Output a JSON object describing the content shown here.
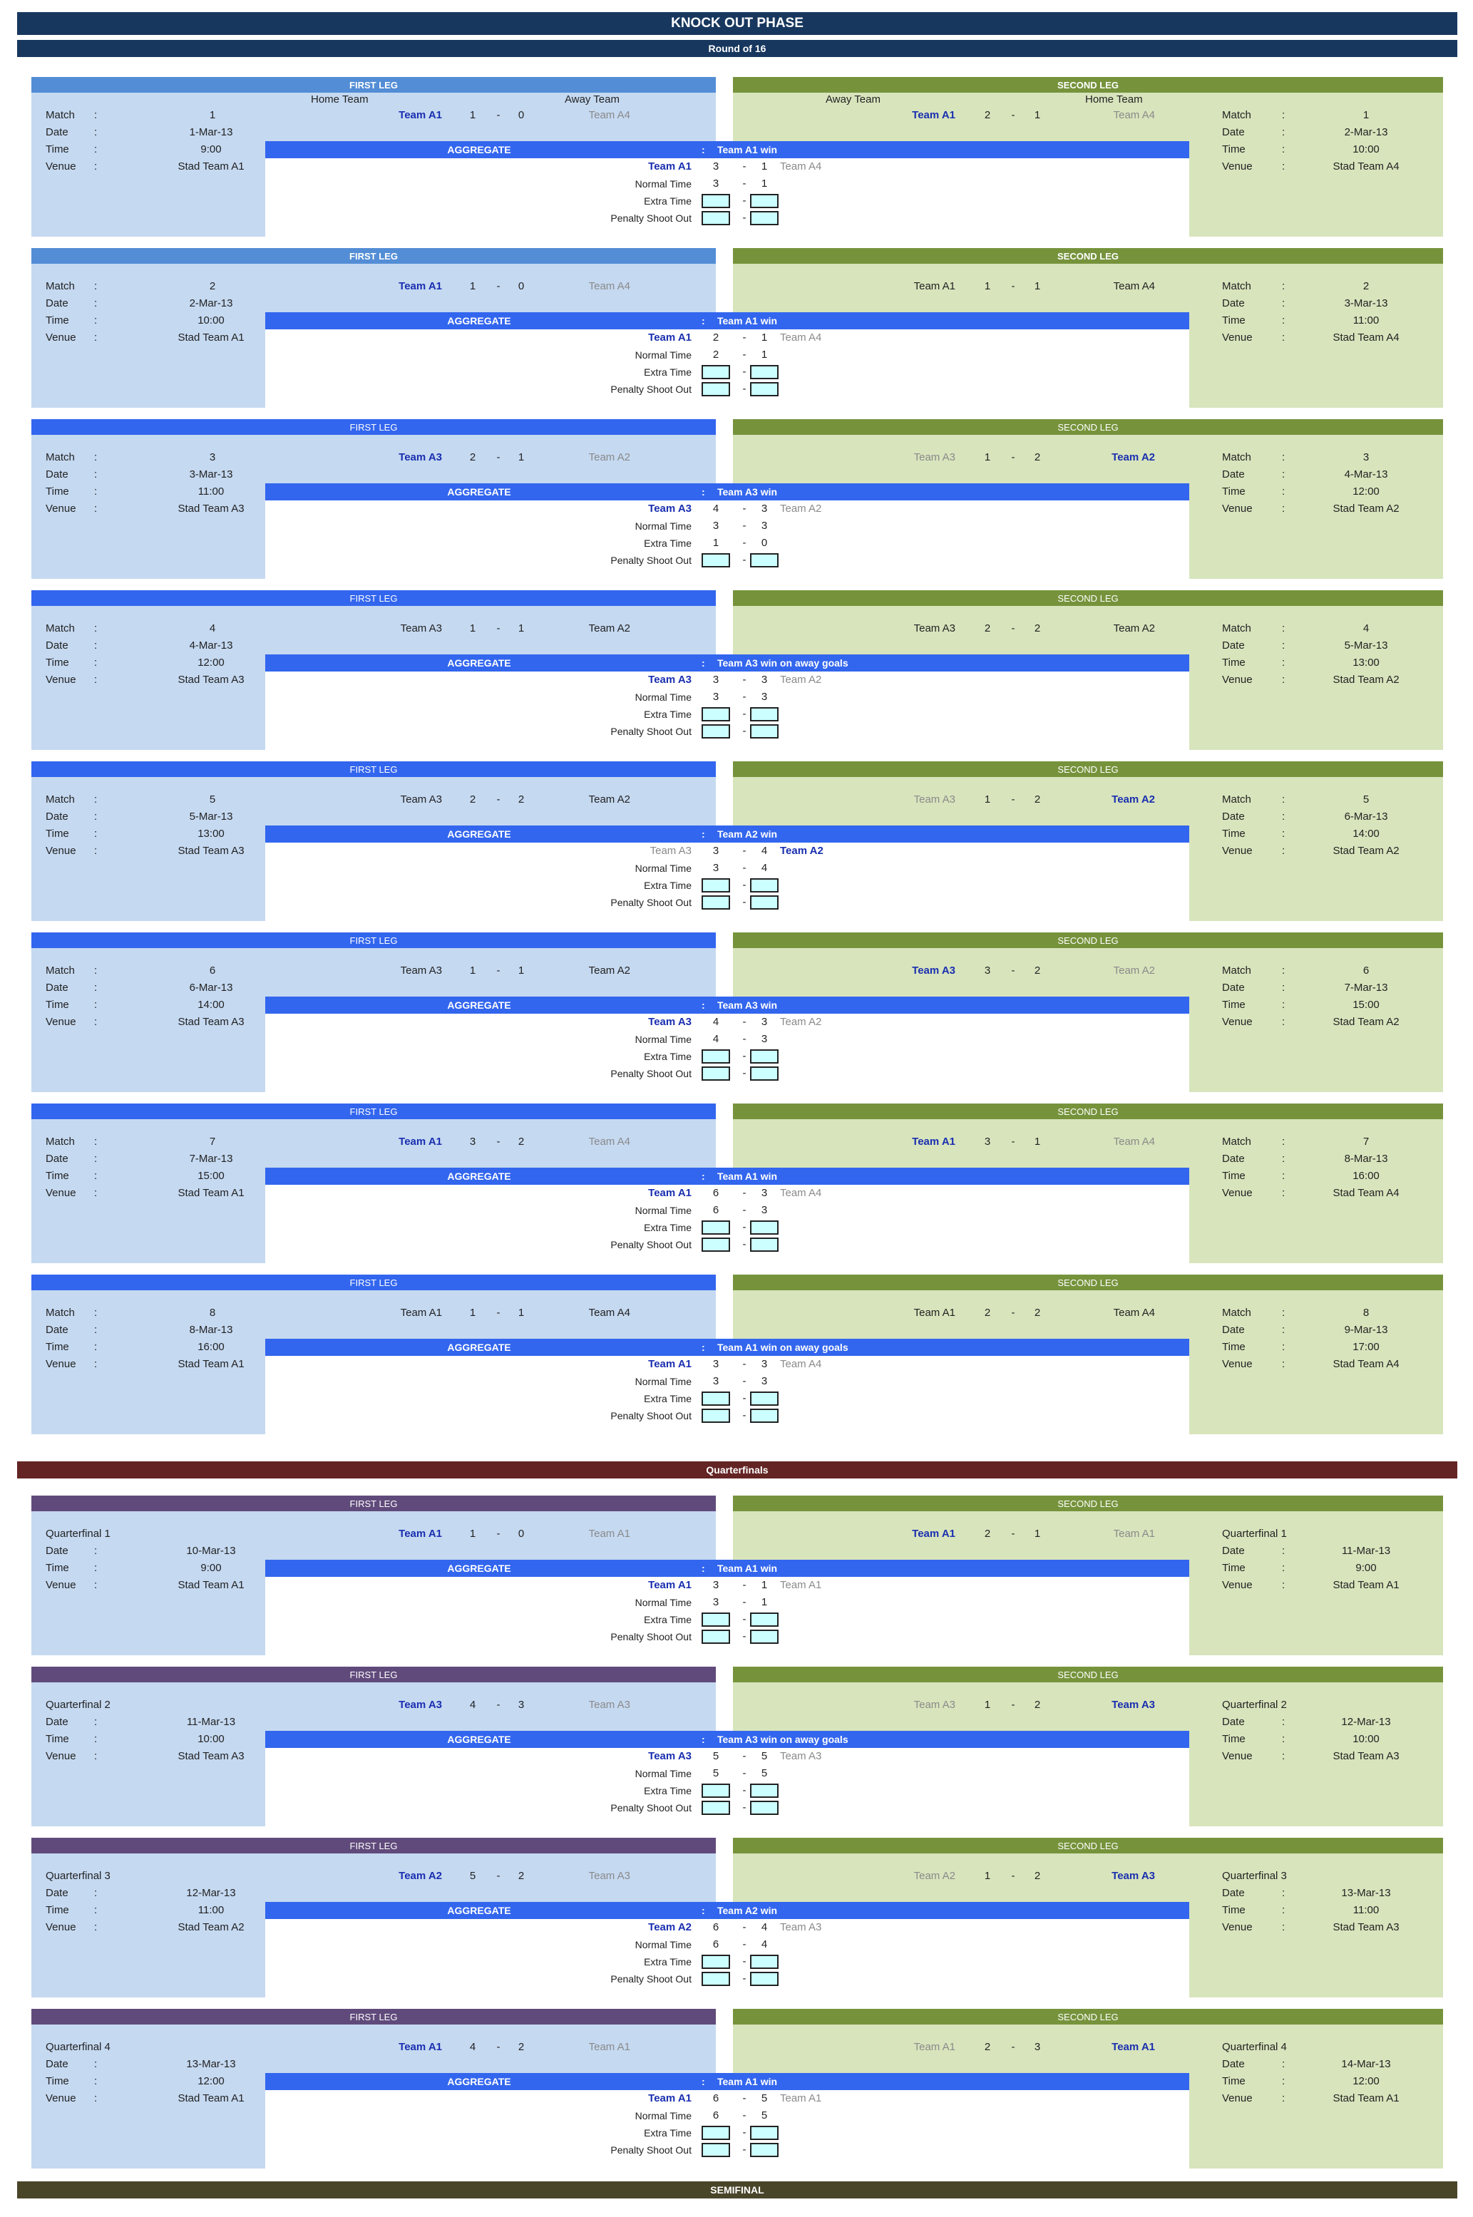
{
  "colors": {
    "title": "#17375e",
    "r16": "#17375e",
    "quarterfinal": "#632423",
    "semifinal": "#494529",
    "first_leg_bold": "#538dd5",
    "first_leg": "#3366ee",
    "first_leg_qf": "#604a7b",
    "second_leg": "#76933c",
    "aggregate": "#3366ee",
    "left_panel": "#c5d9f1",
    "right_panel": "#d8e4bc",
    "score_box": "#ccffff"
  },
  "title": "KNOCK OUT PHASE",
  "round_of_16": "Round of 16",
  "quarterfinals": "Quarterfinals",
  "semifinal": "SEMIFINAL",
  "labels": {
    "first_leg": "FIRST LEG",
    "second_leg": "SECOND LEG",
    "home_team": "Home Team",
    "away_team": "Away Team",
    "match": "Match",
    "date": "Date",
    "time": "Time",
    "venue": "Venue",
    "colon": ":",
    "dash": "-",
    "aggregate": "AGGREGATE",
    "normal_time": "Normal Time",
    "extra_time": "Extra Time",
    "penalty": "Penalty Shoot Out"
  },
  "matches": [
    {
      "first": {
        "label": "Match",
        "id": "1",
        "date": "1-Mar-13",
        "time": "9:00",
        "venue": "Stad Team A1",
        "home": "Team A1",
        "hs": "1",
        "as": "0",
        "away": "Team A4",
        "hstyle": "bold-blue",
        "astyle": "grey"
      },
      "second": {
        "label": "Match",
        "id": "1",
        "date": "2-Mar-13",
        "time": "10:00",
        "venue": "Stad Team A4",
        "away": "Team A1",
        "as": "2",
        "hs": "1",
        "home": "Team A4",
        "astyle": "bold-blue",
        "hstyle": "grey"
      },
      "agg": {
        "result": "Team A1 win",
        "t1": "Team A1",
        "s1": "3",
        "s2": "1",
        "t2": "Team A4",
        "t1style": "bold-blue",
        "t2style": "grey",
        "n1": "3",
        "n2": "1",
        "e1": "",
        "e2": ""
      }
    },
    {
      "first": {
        "label": "Match",
        "id": "2",
        "date": "2-Mar-13",
        "time": "10:00",
        "venue": "Stad Team A1",
        "home": "Team A1",
        "hs": "1",
        "as": "0",
        "away": "Team A4",
        "hstyle": "bold-blue",
        "astyle": "grey"
      },
      "second": {
        "label": "Match",
        "id": "2",
        "date": "3-Mar-13",
        "time": "11:00",
        "venue": "Stad Team A4",
        "away": "Team A1",
        "as": "1",
        "hs": "1",
        "home": "Team A4",
        "astyle": "",
        "hstyle": ""
      },
      "agg": {
        "result": "Team A1 win",
        "t1": "Team A1",
        "s1": "2",
        "s2": "1",
        "t2": "Team A4",
        "t1style": "bold-blue",
        "t2style": "grey",
        "n1": "2",
        "n2": "1",
        "e1": "",
        "e2": ""
      }
    },
    {
      "first": {
        "label": "Match",
        "id": "3",
        "date": "3-Mar-13",
        "time": "11:00",
        "venue": "Stad Team A3",
        "home": "Team A3",
        "hs": "2",
        "as": "1",
        "away": "Team A2",
        "hstyle": "bold-blue",
        "astyle": "grey"
      },
      "second": {
        "label": "Match",
        "id": "3",
        "date": "4-Mar-13",
        "time": "12:00",
        "venue": "Stad Team A2",
        "away": "Team A3",
        "as": "1",
        "hs": "2",
        "home": "Team A2",
        "astyle": "grey",
        "hstyle": "bold-blue"
      },
      "agg": {
        "result": "Team A3 win",
        "t1": "Team A3",
        "s1": "4",
        "s2": "3",
        "t2": "Team A2",
        "t1style": "bold-blue",
        "t2style": "grey",
        "n1": "3",
        "n2": "3",
        "e1": "1",
        "e2": "0"
      }
    },
    {
      "first": {
        "label": "Match",
        "id": "4",
        "date": "4-Mar-13",
        "time": "12:00",
        "venue": "Stad Team A3",
        "home": "Team A3",
        "hs": "1",
        "as": "1",
        "away": "Team A2",
        "hstyle": "",
        "astyle": ""
      },
      "second": {
        "label": "Match",
        "id": "4",
        "date": "5-Mar-13",
        "time": "13:00",
        "venue": "Stad Team A2",
        "away": "Team A3",
        "as": "2",
        "hs": "2",
        "home": "Team A2",
        "astyle": "",
        "hstyle": ""
      },
      "agg": {
        "result": "Team A3 win on away goals",
        "t1": "Team A3",
        "s1": "3",
        "s2": "3",
        "t2": "Team A2",
        "t1style": "bold-blue",
        "t2style": "grey",
        "n1": "3",
        "n2": "3",
        "e1": "",
        "e2": ""
      }
    },
    {
      "first": {
        "label": "Match",
        "id": "5",
        "date": "5-Mar-13",
        "time": "13:00",
        "venue": "Stad Team A3",
        "home": "Team A3",
        "hs": "2",
        "as": "2",
        "away": "Team A2",
        "hstyle": "",
        "astyle": ""
      },
      "second": {
        "label": "Match",
        "id": "5",
        "date": "6-Mar-13",
        "time": "14:00",
        "venue": "Stad Team A2",
        "away": "Team A3",
        "as": "1",
        "hs": "2",
        "home": "Team A2",
        "astyle": "grey",
        "hstyle": "bold-blue"
      },
      "agg": {
        "result": "Team A2 win",
        "t1": "Team A3",
        "s1": "3",
        "s2": "4",
        "t2": "Team A2",
        "t1style": "grey",
        "t2style": "bold-blue",
        "n1": "3",
        "n2": "4",
        "e1": "",
        "e2": ""
      }
    },
    {
      "first": {
        "label": "Match",
        "id": "6",
        "date": "6-Mar-13",
        "time": "14:00",
        "venue": "Stad Team A3",
        "home": "Team A3",
        "hs": "1",
        "as": "1",
        "away": "Team A2",
        "hstyle": "",
        "astyle": ""
      },
      "second": {
        "label": "Match",
        "id": "6",
        "date": "7-Mar-13",
        "time": "15:00",
        "venue": "Stad Team A2",
        "away": "Team A3",
        "as": "3",
        "hs": "2",
        "home": "Team A2",
        "astyle": "bold-blue",
        "hstyle": "grey"
      },
      "agg": {
        "result": "Team A3 win",
        "t1": "Team A3",
        "s1": "4",
        "s2": "3",
        "t2": "Team A2",
        "t1style": "bold-blue",
        "t2style": "grey",
        "n1": "4",
        "n2": "3",
        "e1": "",
        "e2": ""
      }
    },
    {
      "first": {
        "label": "Match",
        "id": "7",
        "date": "7-Mar-13",
        "time": "15:00",
        "venue": "Stad Team A1",
        "home": "Team A1",
        "hs": "3",
        "as": "2",
        "away": "Team A4",
        "hstyle": "bold-blue",
        "astyle": "grey"
      },
      "second": {
        "label": "Match",
        "id": "7",
        "date": "8-Mar-13",
        "time": "16:00",
        "venue": "Stad Team A4",
        "away": "Team A1",
        "as": "3",
        "hs": "1",
        "home": "Team A4",
        "astyle": "bold-blue",
        "hstyle": "grey"
      },
      "agg": {
        "result": "Team A1 win",
        "t1": "Team A1",
        "s1": "6",
        "s2": "3",
        "t2": "Team A4",
        "t1style": "bold-blue",
        "t2style": "grey",
        "n1": "6",
        "n2": "3",
        "e1": "",
        "e2": ""
      }
    },
    {
      "first": {
        "label": "Match",
        "id": "8",
        "date": "8-Mar-13",
        "time": "16:00",
        "venue": "Stad Team A1",
        "home": "Team A1",
        "hs": "1",
        "as": "1",
        "away": "Team A4",
        "hstyle": "",
        "astyle": ""
      },
      "second": {
        "label": "Match",
        "id": "8",
        "date": "9-Mar-13",
        "time": "17:00",
        "venue": "Stad Team A4",
        "away": "Team A1",
        "as": "2",
        "hs": "2",
        "home": "Team A4",
        "astyle": "",
        "hstyle": ""
      },
      "agg": {
        "result": "Team A1 win on away goals",
        "t1": "Team A1",
        "s1": "3",
        "s2": "3",
        "t2": "Team A4",
        "t1style": "bold-blue",
        "t2style": "grey",
        "n1": "3",
        "n2": "3",
        "e1": "",
        "e2": ""
      }
    },
    {
      "first": {
        "label": "Quarterfinal 1",
        "id": "",
        "date": "10-Mar-13",
        "time": "9:00",
        "venue": "Stad Team A1",
        "home": "Team A1",
        "hs": "1",
        "as": "0",
        "away": "Team A1",
        "hstyle": "bold-blue",
        "astyle": "grey"
      },
      "second": {
        "label": "Quarterfinal 1",
        "id": "",
        "date": "11-Mar-13",
        "time": "9:00",
        "venue": "Stad Team A1",
        "away": "Team A1",
        "as": "2",
        "hs": "1",
        "home": "Team A1",
        "astyle": "bold-blue",
        "hstyle": "grey"
      },
      "agg": {
        "result": "Team A1 win",
        "t1": "Team A1",
        "s1": "3",
        "s2": "1",
        "t2": "Team A1",
        "t1style": "bold-blue",
        "t2style": "grey",
        "n1": "3",
        "n2": "1",
        "e1": "",
        "e2": ""
      }
    },
    {
      "first": {
        "label": "Quarterfinal 2",
        "id": "",
        "date": "11-Mar-13",
        "time": "10:00",
        "venue": "Stad Team A3",
        "home": "Team A3",
        "hs": "4",
        "as": "3",
        "away": "Team A3",
        "hstyle": "bold-blue",
        "astyle": "grey"
      },
      "second": {
        "label": "Quarterfinal 2",
        "id": "",
        "date": "12-Mar-13",
        "time": "10:00",
        "venue": "Stad Team A3",
        "away": "Team A3",
        "as": "1",
        "hs": "2",
        "home": "Team A3",
        "astyle": "grey",
        "hstyle": "bold-blue"
      },
      "agg": {
        "result": "Team A3 win on away goals",
        "t1": "Team A3",
        "s1": "5",
        "s2": "5",
        "t2": "Team A3",
        "t1style": "bold-blue",
        "t2style": "grey",
        "n1": "5",
        "n2": "5",
        "e1": "",
        "e2": ""
      }
    },
    {
      "first": {
        "label": "Quarterfinal 3",
        "id": "",
        "date": "12-Mar-13",
        "time": "11:00",
        "venue": "Stad Team A2",
        "home": "Team A2",
        "hs": "5",
        "as": "2",
        "away": "Team A3",
        "hstyle": "bold-blue",
        "astyle": "grey"
      },
      "second": {
        "label": "Quarterfinal 3",
        "id": "",
        "date": "13-Mar-13",
        "time": "11:00",
        "venue": "Stad Team A3",
        "away": "Team A2",
        "as": "1",
        "hs": "2",
        "home": "Team A3",
        "astyle": "grey",
        "hstyle": "bold-blue"
      },
      "agg": {
        "result": "Team A2 win",
        "t1": "Team A2",
        "s1": "6",
        "s2": "4",
        "t2": "Team A3",
        "t1style": "bold-blue",
        "t2style": "grey",
        "n1": "6",
        "n2": "4",
        "e1": "",
        "e2": ""
      }
    },
    {
      "first": {
        "label": "Quarterfinal 4",
        "id": "",
        "date": "13-Mar-13",
        "time": "12:00",
        "venue": "Stad Team A1",
        "home": "Team A1",
        "hs": "4",
        "as": "2",
        "away": "Team A1",
        "hstyle": "bold-blue",
        "astyle": "grey"
      },
      "second": {
        "label": "Quarterfinal 4",
        "id": "",
        "date": "14-Mar-13",
        "time": "12:00",
        "venue": "Stad Team A1",
        "away": "Team A1",
        "as": "2",
        "hs": "3",
        "home": "Team A1",
        "astyle": "grey",
        "hstyle": "bold-blue"
      },
      "agg": {
        "result": "Team A1 win",
        "t1": "Team A1",
        "s1": "6",
        "s2": "5",
        "t2": "Team A1",
        "t1style": "bold-blue",
        "t2style": "grey",
        "n1": "6",
        "n2": "5",
        "e1": "",
        "e2": ""
      }
    }
  ]
}
